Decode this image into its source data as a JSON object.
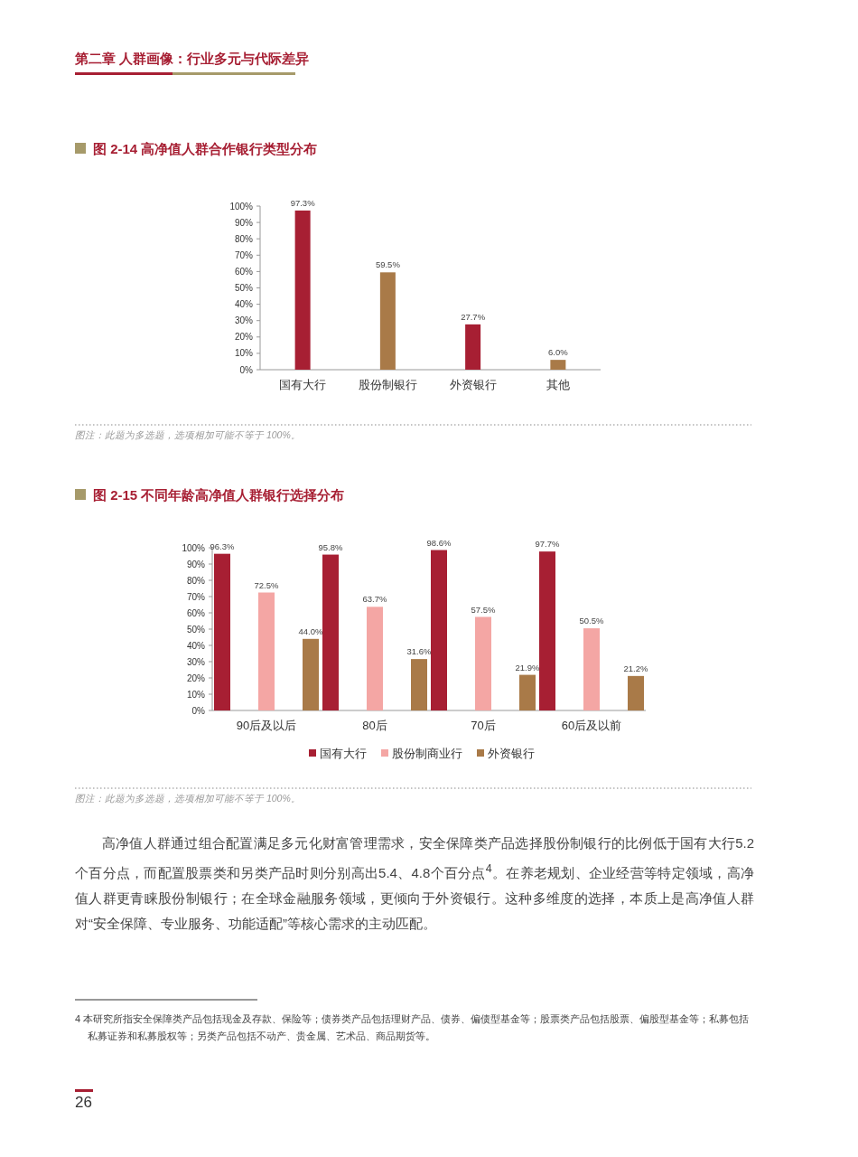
{
  "chart_data": [
    {
      "type": "bar",
      "title": "图 2-14  高净值人群合作银行类型分布",
      "categories": [
        "国有大行",
        "股份制银行",
        "外资银行",
        "其他"
      ],
      "values": [
        97.3,
        59.5,
        27.7,
        6.0
      ],
      "colors": [
        "#a71f33",
        "#a97a48",
        "#a71f33",
        "#a97a48"
      ],
      "value_labels": [
        "97.3%",
        "59.5%",
        "27.7%",
        "6.0%"
      ],
      "ylim": [
        0,
        100
      ],
      "yticks": [
        {
          "value": 0,
          "label": "0%"
        },
        {
          "value": 10,
          "label": "10%"
        },
        {
          "value": 20,
          "label": "20%"
        },
        {
          "value": 30,
          "label": "30%"
        },
        {
          "value": 40,
          "label": "40%"
        },
        {
          "value": 50,
          "label": "50%"
        },
        {
          "value": 60,
          "label": "60%"
        },
        {
          "value": 70,
          "label": "70%"
        },
        {
          "value": 80,
          "label": "80%"
        },
        {
          "value": 90,
          "label": "90%"
        },
        {
          "value": 100,
          "label": "100%"
        }
      ],
      "annotations": [
        "第二章  人群画像：行业多元与代际差异",
        "图注：此题为多选题，选项相加可能不等于 100%。"
      ]
    },
    {
      "type": "bar",
      "title": "图 2-15  不同年龄高净值人群银行选择分布",
      "categories": [
        "90后及以后",
        "80后",
        "70后",
        "60后及以前"
      ],
      "series": [
        {
          "name": "国有大行",
          "color": "#a71f33",
          "values": [
            96.3,
            95.8,
            98.6,
            97.7
          ],
          "value_labels": [
            "96.3%",
            "95.8%",
            "98.6%",
            "97.7%"
          ]
        },
        {
          "name": "股份制商业行",
          "color": "#f4a6a4",
          "values": [
            72.5,
            63.7,
            57.5,
            50.5
          ],
          "value_labels": [
            "72.5%",
            "63.7%",
            "57.5%",
            "50.5%"
          ]
        },
        {
          "name": "外资银行",
          "color": "#a97a48",
          "values": [
            44.0,
            31.6,
            21.9,
            21.2
          ],
          "value_labels": [
            "44.0%",
            "31.6%",
            "21.9%",
            "21.2%"
          ]
        }
      ],
      "legend": "bottom",
      "ylim": [
        0,
        100
      ],
      "yticks": [
        {
          "value": 0,
          "label": "0%"
        },
        {
          "value": 10,
          "label": "10%"
        },
        {
          "value": 20,
          "label": "20%"
        },
        {
          "value": 30,
          "label": "30%"
        },
        {
          "value": 40,
          "label": "40%"
        },
        {
          "value": 50,
          "label": "50%"
        },
        {
          "value": 60,
          "label": "60%"
        },
        {
          "value": 70,
          "label": "70%"
        },
        {
          "value": 80,
          "label": "80%"
        },
        {
          "value": 90,
          "label": "90%"
        },
        {
          "value": 100,
          "label": "100%"
        }
      ],
      "annotations": [
        "图注：此题为多选题，选项相加可能不等于 100%。",
        "高净值人群通过组合配置满足多元化财富管理需求，安全保障类产品选择股份制银行的比例低于国有大行5.2个百分点，而配置股票类和另类产品时则分别高出5.4、4.8个百分点$^{4}$。在养老规划、企业经营等特定领域，高净值人群更青睐股份制银行；在全球金融服务领域，更倾向于外资银行。这种多维度的选择，本质上是高净值人群对“安全保障、专业服务、功能适配”等核心需求的主动匹配。",
        "4  本研究所指安全保障类产品包括现金及存款、保险等；债券类产品包括理财产品、债券、偏债型基金等；股票类产品包括股票、偏股型基金等；私募包括私募证券和私募股权等；另类产品包括不动产、贵金属、艺术品、商品期货等。",
        "26"
      ]
    }
  ]
}
